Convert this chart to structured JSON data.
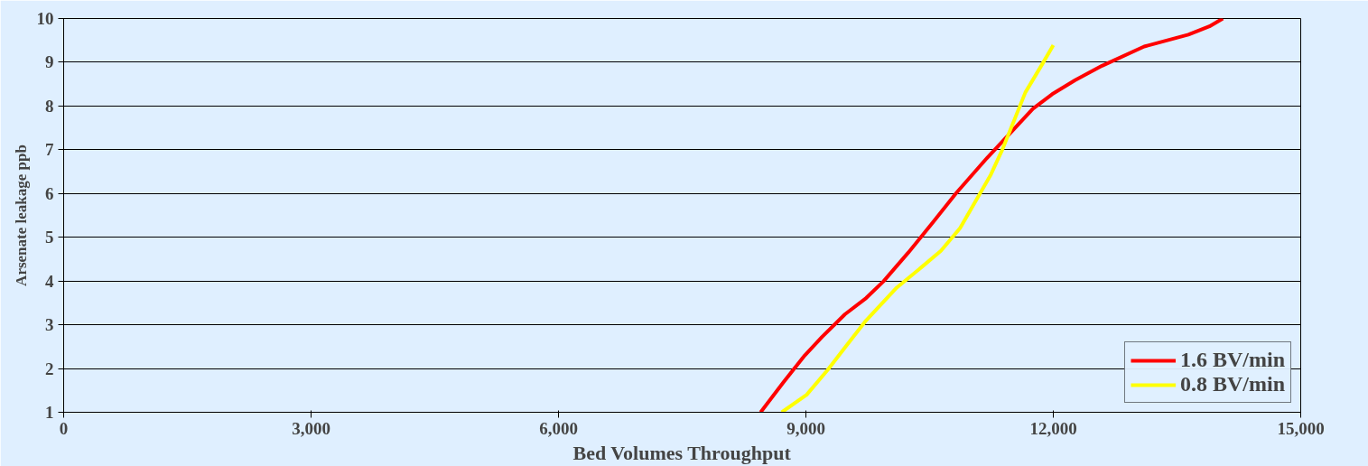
{
  "chart_data": {
    "type": "line",
    "xlabel": "Bed Volumes Throughput",
    "ylabel": "Arsenate leakage ppb",
    "xlim": [
      0,
      15000
    ],
    "xticks": [
      {
        "value": 0,
        "label": "0"
      },
      {
        "value": 3000,
        "label": "3,000"
      },
      {
        "value": 6000,
        "label": "6,000"
      },
      {
        "value": 9000,
        "label": "9,000"
      },
      {
        "value": 12000,
        "label": "12,000"
      },
      {
        "value": 15000,
        "label": "15,000"
      }
    ],
    "ylim": [
      1,
      10
    ],
    "yticks": [
      1,
      2,
      3,
      4,
      5,
      6,
      7,
      8,
      9,
      10
    ],
    "grid": "y",
    "legend": "bottom right",
    "marker": "none",
    "line_style": "solid",
    "series": [
      {
        "name": "1.6 BV/min",
        "color": "#ff0000",
        "x": [
          8451,
          8730,
          8986,
          9195,
          9474,
          9730,
          9940,
          10242,
          10544,
          10823,
          11195,
          11521,
          11753,
          11986,
          12265,
          12591,
          13102,
          13637,
          13893,
          14056
        ],
        "values": [
          1.0,
          1.69,
          2.3,
          2.72,
          3.24,
          3.61,
          3.99,
          4.65,
          5.35,
          6.01,
          6.81,
          7.47,
          7.94,
          8.27,
          8.59,
          8.92,
          9.36,
          9.63,
          9.82,
          10.0
        ]
      },
      {
        "name": "0.8 BV/min",
        "color": "#ffff00",
        "x": [
          8707,
          9009,
          9265,
          9474,
          9730,
          10102,
          10405,
          10637,
          10870,
          11056,
          11242,
          11381,
          11521,
          11661,
          11870,
          12000
        ],
        "values": [
          1.0,
          1.4,
          1.97,
          2.48,
          3.1,
          3.85,
          4.32,
          4.69,
          5.21,
          5.82,
          6.43,
          7.0,
          7.65,
          8.31,
          8.97,
          9.39
        ]
      }
    ]
  }
}
